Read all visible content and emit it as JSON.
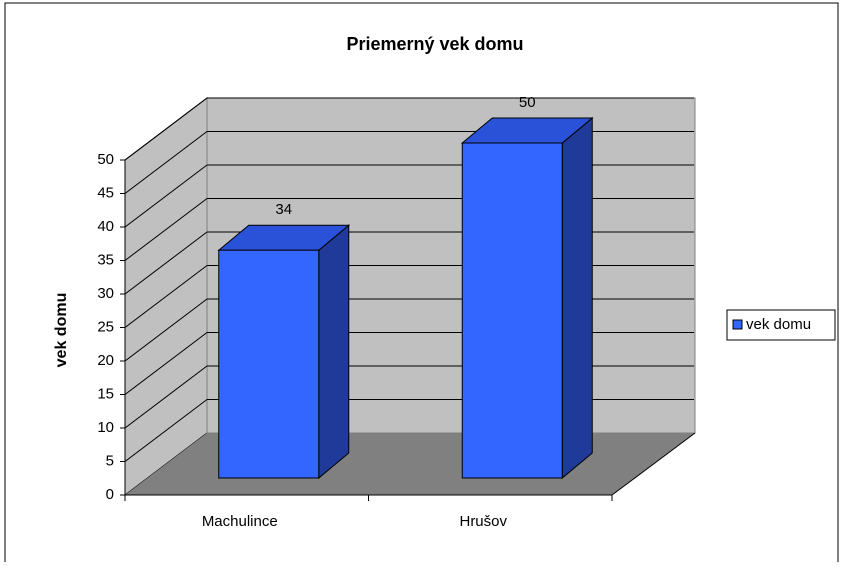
{
  "chart_data": {
    "type": "bar",
    "title": "Priemerný vek domu",
    "y_label": "vek domu",
    "categories": [
      "Machulince",
      "Hrušov"
    ],
    "series": [
      {
        "name": "vek domu",
        "color": "#3366ff",
        "values": [
          34,
          50
        ]
      }
    ],
    "ylim": [
      0,
      50
    ],
    "yticks": [
      0,
      5,
      10,
      15,
      20,
      25,
      30,
      35,
      40,
      45,
      50
    ],
    "grid": true,
    "legend": "right"
  }
}
